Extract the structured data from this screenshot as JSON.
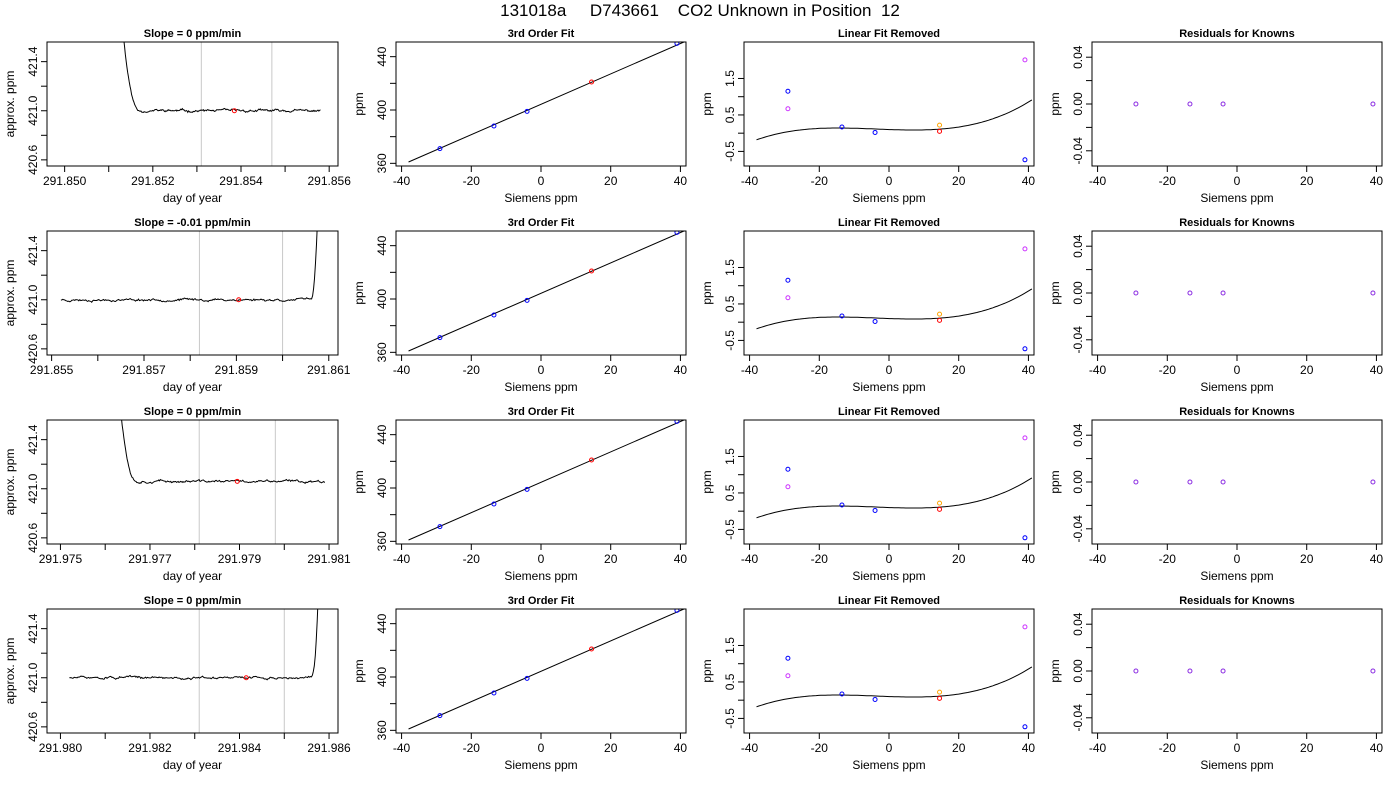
{
  "page_title": "131018a     D743661    CO2 Unknown in Position  12",
  "colors": {
    "trace": "#000000",
    "reference_line": "#c8c8c8",
    "marker_red": "#ff0000",
    "marker_blue": "#0000ff",
    "marker_magenta": "#cc33ff",
    "marker_orange": "#ffa500",
    "marker_purple": "#8a2be2"
  },
  "chart_data": [
    {
      "type": "line",
      "panel": "trace",
      "row": 0,
      "title": "Slope =  0  ppm/min",
      "xlabel": "day of year",
      "ylabel": "approx. ppm",
      "xlim": [
        291.8496,
        291.8562
      ],
      "ylim": [
        420.55,
        421.56
      ],
      "xticks": [
        291.85,
        291.851,
        291.852,
        291.853,
        291.854,
        291.855,
        291.856
      ],
      "xtick_labels": [
        "291.850",
        "",
        "291.852",
        "",
        "291.854",
        "",
        "291.856"
      ],
      "yticks": [
        420.6,
        420.8,
        421.0,
        421.2,
        421.4
      ],
      "ytick_labels": [
        "420.6",
        "",
        "421.0",
        "",
        "421.4"
      ],
      "trace_start": 291.8512,
      "trace_end": 291.8558,
      "trace_level": 421.0,
      "spike": "start",
      "noise": 0.012,
      "seed": 11,
      "vlines": [
        291.8531,
        291.8547
      ],
      "marker": {
        "x": 291.85385,
        "y": 421.0
      }
    },
    {
      "type": "scatter",
      "panel": "fit",
      "row": 0,
      "title": "3rd Order Fit",
      "xlabel": "Siemens ppm",
      "ylabel": "ppm",
      "xlim": [
        -41.6,
        41.6
      ],
      "ylim": [
        358,
        451
      ],
      "xticks": [
        -40,
        -20,
        0,
        20,
        40
      ],
      "xtick_labels": [
        "-40",
        "-20",
        "0",
        "20",
        "40"
      ],
      "yticks": [
        360,
        380,
        400,
        420,
        440
      ],
      "ytick_labels": [
        "360",
        "",
        "400",
        "",
        "440"
      ],
      "curve_x": [
        -38,
        41
      ],
      "curve_y": [
        361,
        451
      ],
      "points": [
        {
          "x": -29,
          "y": 371,
          "color": "blue"
        },
        {
          "x": -13.5,
          "y": 388,
          "color": "blue"
        },
        {
          "x": -4,
          "y": 399,
          "color": "blue"
        },
        {
          "x": 14.5,
          "y": 421,
          "color": "red"
        },
        {
          "x": 39,
          "y": 450,
          "color": "blue"
        }
      ]
    },
    {
      "type": "scatter",
      "panel": "linear_removed",
      "row": 0,
      "title": "Linear Fit Removed",
      "xlabel": "Siemens ppm",
      "ylabel": "ppm",
      "xlim": [
        -41.6,
        41.6
      ],
      "ylim": [
        -0.9,
        2.5
      ],
      "xticks": [
        -40,
        -20,
        0,
        20,
        40
      ],
      "xtick_labels": [
        "-40",
        "-20",
        "0",
        "20",
        "40"
      ],
      "yticks": [
        -0.5,
        0,
        0.5,
        1,
        1.5
      ],
      "ytick_labels": [
        "-0.5",
        "",
        "0.5",
        "",
        "1.5"
      ],
      "curve_range": [
        -38,
        41
      ],
      "curve_poly": [
        0.1,
        -0.00335,
        0.0001245,
        1.075e-05
      ],
      "points": [
        {
          "x": -29,
          "y": 1.15,
          "color": "blue"
        },
        {
          "x": -13.5,
          "y": 0.17,
          "color": "blue"
        },
        {
          "x": -4,
          "y": 0.02,
          "color": "blue"
        },
        {
          "x": 14.5,
          "y": 0.05,
          "color": "red"
        },
        {
          "x": 39,
          "y": -0.73,
          "color": "blue"
        },
        {
          "x": -29,
          "y": 0.67,
          "color": "magenta"
        },
        {
          "x": 39,
          "y": 2.01,
          "color": "magenta"
        },
        {
          "x": 14.5,
          "y": 0.22,
          "color": "orange"
        }
      ]
    },
    {
      "type": "scatter",
      "panel": "residuals",
      "row": 0,
      "title": "Residuals for Knowns",
      "xlabel": "Siemens ppm",
      "ylabel": "ppm",
      "xlim": [
        -41.6,
        41.6
      ],
      "ylim": [
        -0.053,
        0.053
      ],
      "xticks": [
        -40,
        -20,
        0,
        20,
        40
      ],
      "xtick_labels": [
        "-40",
        "-20",
        "0",
        "20",
        "40"
      ],
      "yticks": [
        -0.04,
        -0.02,
        0.0,
        0.02,
        0.04
      ],
      "ytick_labels": [
        "-0.04",
        "",
        "0.00",
        "",
        "0.04"
      ],
      "points": [
        {
          "x": -29,
          "y": 0,
          "color": "purple"
        },
        {
          "x": -13.5,
          "y": 0,
          "color": "purple"
        },
        {
          "x": -4,
          "y": 0,
          "color": "purple"
        },
        {
          "x": 39,
          "y": 0,
          "color": "purple"
        }
      ]
    },
    {
      "type": "line",
      "panel": "trace",
      "row": 1,
      "title": "Slope =  -0.01  ppm/min",
      "xlabel": "day of year",
      "ylabel": "approx. ppm",
      "xlim": [
        291.8549,
        291.8612
      ],
      "ylim": [
        420.55,
        421.56
      ],
      "xticks": [
        291.855,
        291.856,
        291.857,
        291.858,
        291.859,
        291.86,
        291.861
      ],
      "xtick_labels": [
        "291.855",
        "",
        "291.857",
        "",
        "291.859",
        "",
        "291.861"
      ],
      "yticks": [
        420.6,
        420.8,
        421.0,
        421.2,
        421.4
      ],
      "ytick_labels": [
        "420.6",
        "",
        "421.0",
        "",
        "421.4"
      ],
      "trace_start": 291.8552,
      "trace_end": 291.8608,
      "trace_level": 421.0,
      "spike": "end",
      "noise": 0.012,
      "seed": 23,
      "vlines": [
        291.8582,
        291.86
      ],
      "marker": {
        "x": 291.85905,
        "y": 421.0
      }
    },
    {
      "type": "scatter",
      "panel": "fit",
      "row": 1,
      "title": "3rd Order Fit",
      "xlabel": "Siemens ppm",
      "ylabel": "ppm",
      "xlim": [
        -41.6,
        41.6
      ],
      "ylim": [
        358,
        451
      ],
      "xticks": [
        -40,
        -20,
        0,
        20,
        40
      ],
      "xtick_labels": [
        "-40",
        "-20",
        "0",
        "20",
        "40"
      ],
      "yticks": [
        360,
        380,
        400,
        420,
        440
      ],
      "ytick_labels": [
        "360",
        "",
        "400",
        "",
        "440"
      ],
      "curve_x": [
        -38,
        41
      ],
      "curve_y": [
        361,
        451
      ],
      "points": [
        {
          "x": -29,
          "y": 371,
          "color": "blue"
        },
        {
          "x": -13.5,
          "y": 388,
          "color": "blue"
        },
        {
          "x": -4,
          "y": 399,
          "color": "blue"
        },
        {
          "x": 14.5,
          "y": 421,
          "color": "red"
        },
        {
          "x": 39,
          "y": 450,
          "color": "blue"
        }
      ]
    },
    {
      "type": "scatter",
      "panel": "linear_removed",
      "row": 1,
      "title": "Linear Fit Removed",
      "xlabel": "Siemens ppm",
      "ylabel": "ppm",
      "xlim": [
        -41.6,
        41.6
      ],
      "ylim": [
        -0.9,
        2.5
      ],
      "xticks": [
        -40,
        -20,
        0,
        20,
        40
      ],
      "xtick_labels": [
        "-40",
        "-20",
        "0",
        "20",
        "40"
      ],
      "yticks": [
        -0.5,
        0,
        0.5,
        1,
        1.5
      ],
      "ytick_labels": [
        "-0.5",
        "",
        "0.5",
        "",
        "1.5"
      ],
      "curve_range": [
        -38,
        41
      ],
      "curve_poly": [
        0.1,
        -0.00335,
        0.0001245,
        1.075e-05
      ],
      "points": [
        {
          "x": -29,
          "y": 1.15,
          "color": "blue"
        },
        {
          "x": -13.5,
          "y": 0.17,
          "color": "blue"
        },
        {
          "x": -4,
          "y": 0.02,
          "color": "blue"
        },
        {
          "x": 14.5,
          "y": 0.05,
          "color": "red"
        },
        {
          "x": 39,
          "y": -0.73,
          "color": "blue"
        },
        {
          "x": -29,
          "y": 0.67,
          "color": "magenta"
        },
        {
          "x": 39,
          "y": 2.01,
          "color": "magenta"
        },
        {
          "x": 14.5,
          "y": 0.22,
          "color": "orange"
        }
      ]
    },
    {
      "type": "scatter",
      "panel": "residuals",
      "row": 1,
      "title": "Residuals for Knowns",
      "xlabel": "Siemens ppm",
      "ylabel": "ppm",
      "xlim": [
        -41.6,
        41.6
      ],
      "ylim": [
        -0.053,
        0.053
      ],
      "xticks": [
        -40,
        -20,
        0,
        20,
        40
      ],
      "xtick_labels": [
        "-40",
        "-20",
        "0",
        "20",
        "40"
      ],
      "yticks": [
        -0.04,
        -0.02,
        0.0,
        0.02,
        0.04
      ],
      "ytick_labels": [
        "-0.04",
        "",
        "0.00",
        "",
        "0.04"
      ],
      "points": [
        {
          "x": -29,
          "y": 0,
          "color": "purple"
        },
        {
          "x": -13.5,
          "y": 0,
          "color": "purple"
        },
        {
          "x": -4,
          "y": 0,
          "color": "purple"
        },
        {
          "x": 39,
          "y": 0,
          "color": "purple"
        }
      ]
    },
    {
      "type": "line",
      "panel": "trace",
      "row": 2,
      "title": "Slope =  0  ppm/min",
      "xlabel": "day of year",
      "ylabel": "approx. ppm",
      "xlim": [
        291.9747,
        291.9812
      ],
      "ylim": [
        420.55,
        421.56
      ],
      "xticks": [
        291.975,
        291.976,
        291.977,
        291.978,
        291.979,
        291.98,
        291.981
      ],
      "xtick_labels": [
        "291.975",
        "",
        "291.977",
        "",
        "291.979",
        "",
        "291.981"
      ],
      "yticks": [
        420.6,
        420.8,
        421.0,
        421.2,
        421.4
      ],
      "ytick_labels": [
        "420.6",
        "",
        "421.0",
        "",
        "421.4"
      ],
      "trace_start": 291.9762,
      "trace_end": 291.9809,
      "trace_level": 421.06,
      "spike": "start",
      "noise": 0.012,
      "seed": 37,
      "vlines": [
        291.9781,
        291.9798
      ],
      "marker": {
        "x": 291.97895,
        "y": 421.06
      }
    },
    {
      "type": "scatter",
      "panel": "fit",
      "row": 2,
      "title": "3rd Order Fit",
      "xlabel": "Siemens ppm",
      "ylabel": "ppm",
      "xlim": [
        -41.6,
        41.6
      ],
      "ylim": [
        358,
        451
      ],
      "xticks": [
        -40,
        -20,
        0,
        20,
        40
      ],
      "xtick_labels": [
        "-40",
        "-20",
        "0",
        "20",
        "40"
      ],
      "yticks": [
        360,
        380,
        400,
        420,
        440
      ],
      "ytick_labels": [
        "360",
        "",
        "400",
        "",
        "440"
      ],
      "curve_x": [
        -38,
        41
      ],
      "curve_y": [
        361,
        451
      ],
      "points": [
        {
          "x": -29,
          "y": 371,
          "color": "blue"
        },
        {
          "x": -13.5,
          "y": 388,
          "color": "blue"
        },
        {
          "x": -4,
          "y": 399,
          "color": "blue"
        },
        {
          "x": 14.5,
          "y": 421,
          "color": "red"
        },
        {
          "x": 39,
          "y": 450,
          "color": "blue"
        }
      ]
    },
    {
      "type": "scatter",
      "panel": "linear_removed",
      "row": 2,
      "title": "Linear Fit Removed",
      "xlabel": "Siemens ppm",
      "ylabel": "ppm",
      "xlim": [
        -41.6,
        41.6
      ],
      "ylim": [
        -0.9,
        2.5
      ],
      "xticks": [
        -40,
        -20,
        0,
        20,
        40
      ],
      "xtick_labels": [
        "-40",
        "-20",
        "0",
        "20",
        "40"
      ],
      "yticks": [
        -0.5,
        0,
        0.5,
        1,
        1.5
      ],
      "ytick_labels": [
        "-0.5",
        "",
        "0.5",
        "",
        "1.5"
      ],
      "curve_range": [
        -38,
        41
      ],
      "curve_poly": [
        0.1,
        -0.00335,
        0.0001245,
        1.075e-05
      ],
      "points": [
        {
          "x": -29,
          "y": 1.15,
          "color": "blue"
        },
        {
          "x": -13.5,
          "y": 0.17,
          "color": "blue"
        },
        {
          "x": -4,
          "y": 0.02,
          "color": "blue"
        },
        {
          "x": 14.5,
          "y": 0.05,
          "color": "red"
        },
        {
          "x": 39,
          "y": -0.73,
          "color": "blue"
        },
        {
          "x": -29,
          "y": 0.67,
          "color": "magenta"
        },
        {
          "x": 39,
          "y": 2.01,
          "color": "magenta"
        },
        {
          "x": 14.5,
          "y": 0.22,
          "color": "orange"
        }
      ]
    },
    {
      "type": "scatter",
      "panel": "residuals",
      "row": 2,
      "title": "Residuals for Knowns",
      "xlabel": "Siemens ppm",
      "ylabel": "ppm",
      "xlim": [
        -41.6,
        41.6
      ],
      "ylim": [
        -0.053,
        0.053
      ],
      "xticks": [
        -40,
        -20,
        0,
        20,
        40
      ],
      "xtick_labels": [
        "-40",
        "-20",
        "0",
        "20",
        "40"
      ],
      "yticks": [
        -0.04,
        -0.02,
        0.0,
        0.02,
        0.04
      ],
      "ytick_labels": [
        "-0.04",
        "",
        "0.00",
        "",
        "0.04"
      ],
      "points": [
        {
          "x": -29,
          "y": 0,
          "color": "purple"
        },
        {
          "x": -13.5,
          "y": 0,
          "color": "purple"
        },
        {
          "x": -4,
          "y": 0,
          "color": "purple"
        },
        {
          "x": 39,
          "y": 0,
          "color": "purple"
        }
      ]
    },
    {
      "type": "line",
      "panel": "trace",
      "row": 3,
      "title": "Slope =  0  ppm/min",
      "xlabel": "day of year",
      "ylabel": "approx. ppm",
      "xlim": [
        291.9797,
        291.9862
      ],
      "ylim": [
        420.55,
        421.56
      ],
      "xticks": [
        291.98,
        291.981,
        291.982,
        291.983,
        291.984,
        291.985,
        291.986
      ],
      "xtick_labels": [
        "291.980",
        "",
        "291.982",
        "",
        "291.984",
        "",
        "291.986"
      ],
      "yticks": [
        420.6,
        420.8,
        421.0,
        421.2,
        421.4
      ],
      "ytick_labels": [
        "420.6",
        "",
        "421.0",
        "",
        "421.4"
      ],
      "trace_start": 291.9802,
      "trace_end": 291.9858,
      "trace_level": 421.0,
      "spike": "end",
      "noise": 0.012,
      "seed": 51,
      "vlines": [
        291.9831,
        291.985
      ],
      "marker": {
        "x": 291.98415,
        "y": 421.0
      }
    },
    {
      "type": "scatter",
      "panel": "fit",
      "row": 3,
      "title": "3rd Order Fit",
      "xlabel": "Siemens ppm",
      "ylabel": "ppm",
      "xlim": [
        -41.6,
        41.6
      ],
      "ylim": [
        358,
        451
      ],
      "xticks": [
        -40,
        -20,
        0,
        20,
        40
      ],
      "xtick_labels": [
        "-40",
        "-20",
        "0",
        "20",
        "40"
      ],
      "yticks": [
        360,
        380,
        400,
        420,
        440
      ],
      "ytick_labels": [
        "360",
        "",
        "400",
        "",
        "440"
      ],
      "curve_x": [
        -38,
        41
      ],
      "curve_y": [
        361,
        451
      ],
      "points": [
        {
          "x": -29,
          "y": 371,
          "color": "blue"
        },
        {
          "x": -13.5,
          "y": 388,
          "color": "blue"
        },
        {
          "x": -4,
          "y": 399,
          "color": "blue"
        },
        {
          "x": 14.5,
          "y": 421,
          "color": "red"
        },
        {
          "x": 39,
          "y": 450,
          "color": "blue"
        }
      ]
    },
    {
      "type": "scatter",
      "panel": "linear_removed",
      "row": 3,
      "title": "Linear Fit Removed",
      "xlabel": "Siemens ppm",
      "ylabel": "ppm",
      "xlim": [
        -41.6,
        41.6
      ],
      "ylim": [
        -0.9,
        2.5
      ],
      "xticks": [
        -40,
        -20,
        0,
        20,
        40
      ],
      "xtick_labels": [
        "-40",
        "-20",
        "0",
        "20",
        "40"
      ],
      "yticks": [
        -0.5,
        0,
        0.5,
        1,
        1.5
      ],
      "ytick_labels": [
        "-0.5",
        "",
        "0.5",
        "",
        "1.5"
      ],
      "curve_range": [
        -38,
        41
      ],
      "curve_poly": [
        0.1,
        -0.00335,
        0.0001245,
        1.075e-05
      ],
      "points": [
        {
          "x": -29,
          "y": 1.15,
          "color": "blue"
        },
        {
          "x": -13.5,
          "y": 0.17,
          "color": "blue"
        },
        {
          "x": -4,
          "y": 0.02,
          "color": "blue"
        },
        {
          "x": 14.5,
          "y": 0.05,
          "color": "red"
        },
        {
          "x": 39,
          "y": -0.73,
          "color": "blue"
        },
        {
          "x": -29,
          "y": 0.67,
          "color": "magenta"
        },
        {
          "x": 39,
          "y": 2.01,
          "color": "magenta"
        },
        {
          "x": 14.5,
          "y": 0.22,
          "color": "orange"
        }
      ]
    },
    {
      "type": "scatter",
      "panel": "residuals",
      "row": 3,
      "title": "Residuals for Knowns",
      "xlabel": "Siemens ppm",
      "ylabel": "ppm",
      "xlim": [
        -41.6,
        41.6
      ],
      "ylim": [
        -0.053,
        0.053
      ],
      "xticks": [
        -40,
        -20,
        0,
        20,
        40
      ],
      "xtick_labels": [
        "-40",
        "-20",
        "0",
        "20",
        "40"
      ],
      "yticks": [
        -0.04,
        -0.02,
        0.0,
        0.02,
        0.04
      ],
      "ytick_labels": [
        "-0.04",
        "",
        "0.00",
        "",
        "0.04"
      ],
      "points": [
        {
          "x": -29,
          "y": 0,
          "color": "purple"
        },
        {
          "x": -13.5,
          "y": 0,
          "color": "purple"
        },
        {
          "x": -4,
          "y": 0,
          "color": "purple"
        },
        {
          "x": 39,
          "y": 0,
          "color": "purple"
        }
      ]
    }
  ]
}
